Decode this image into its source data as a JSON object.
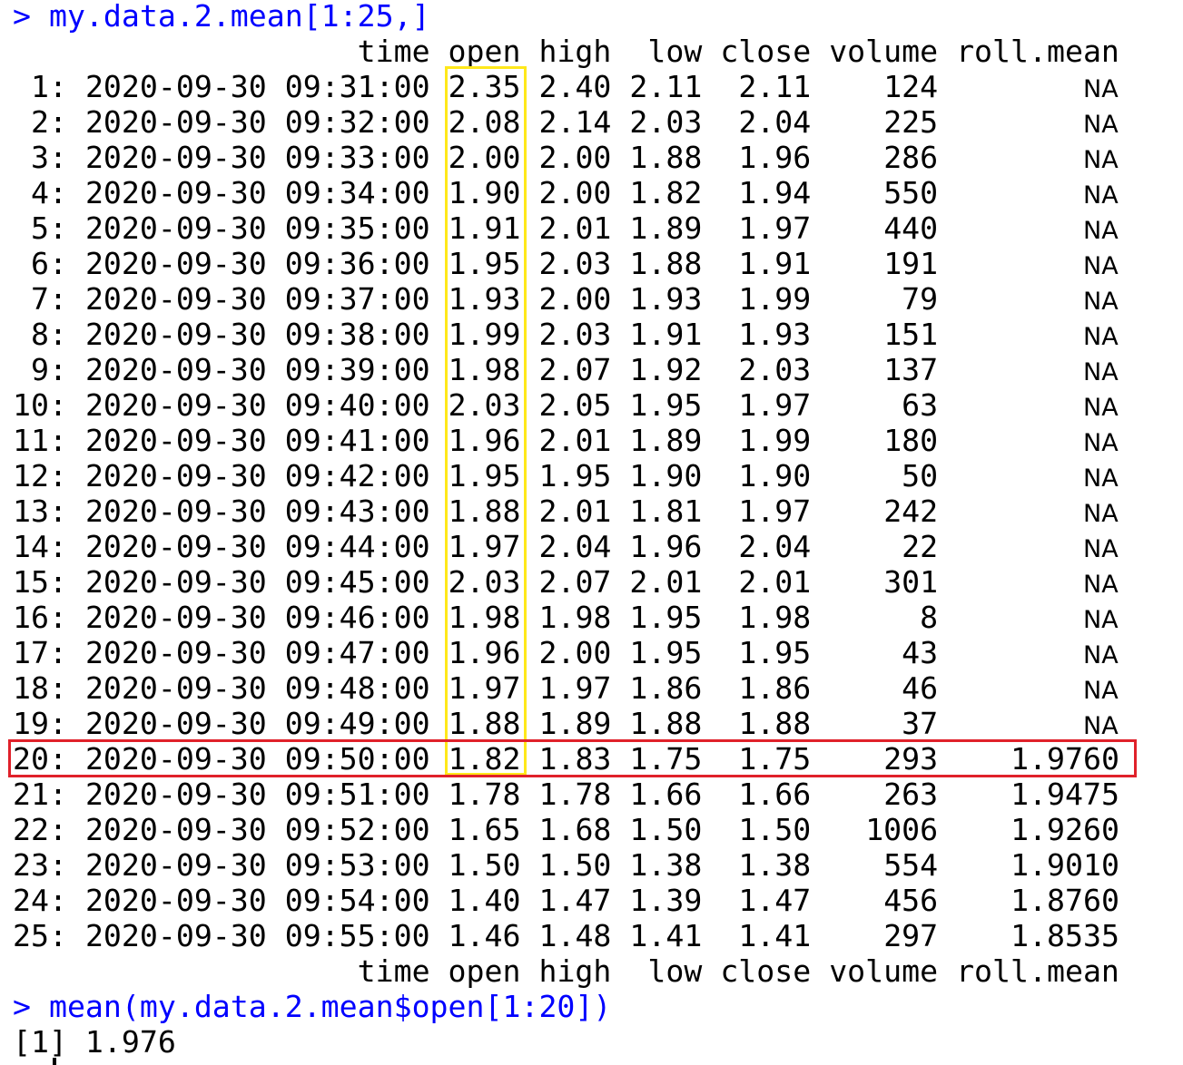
{
  "console": {
    "prompt": "> ",
    "command1": "my.data.2.mean[1:25,]",
    "header": {
      "time": "time",
      "open": "open",
      "high": "high",
      "low": "low",
      "close": "close",
      "volume": "volume",
      "roll_mean": "roll.mean"
    },
    "rows": [
      {
        "idx": "1:",
        "time": "2020-09-30 09:31:00",
        "open": "2.35",
        "high": "2.40",
        "low": "2.11",
        "close": "2.11",
        "volume": "124",
        "roll_mean": "NA"
      },
      {
        "idx": "2:",
        "time": "2020-09-30 09:32:00",
        "open": "2.08",
        "high": "2.14",
        "low": "2.03",
        "close": "2.04",
        "volume": "225",
        "roll_mean": "NA"
      },
      {
        "idx": "3:",
        "time": "2020-09-30 09:33:00",
        "open": "2.00",
        "high": "2.00",
        "low": "1.88",
        "close": "1.96",
        "volume": "286",
        "roll_mean": "NA"
      },
      {
        "idx": "4:",
        "time": "2020-09-30 09:34:00",
        "open": "1.90",
        "high": "2.00",
        "low": "1.82",
        "close": "1.94",
        "volume": "550",
        "roll_mean": "NA"
      },
      {
        "idx": "5:",
        "time": "2020-09-30 09:35:00",
        "open": "1.91",
        "high": "2.01",
        "low": "1.89",
        "close": "1.97",
        "volume": "440",
        "roll_mean": "NA"
      },
      {
        "idx": "6:",
        "time": "2020-09-30 09:36:00",
        "open": "1.95",
        "high": "2.03",
        "low": "1.88",
        "close": "1.91",
        "volume": "191",
        "roll_mean": "NA"
      },
      {
        "idx": "7:",
        "time": "2020-09-30 09:37:00",
        "open": "1.93",
        "high": "2.00",
        "low": "1.93",
        "close": "1.99",
        "volume": "79",
        "roll_mean": "NA"
      },
      {
        "idx": "8:",
        "time": "2020-09-30 09:38:00",
        "open": "1.99",
        "high": "2.03",
        "low": "1.91",
        "close": "1.93",
        "volume": "151",
        "roll_mean": "NA"
      },
      {
        "idx": "9:",
        "time": "2020-09-30 09:39:00",
        "open": "1.98",
        "high": "2.07",
        "low": "1.92",
        "close": "2.03",
        "volume": "137",
        "roll_mean": "NA"
      },
      {
        "idx": "10:",
        "time": "2020-09-30 09:40:00",
        "open": "2.03",
        "high": "2.05",
        "low": "1.95",
        "close": "1.97",
        "volume": "63",
        "roll_mean": "NA"
      },
      {
        "idx": "11:",
        "time": "2020-09-30 09:41:00",
        "open": "1.96",
        "high": "2.01",
        "low": "1.89",
        "close": "1.99",
        "volume": "180",
        "roll_mean": "NA"
      },
      {
        "idx": "12:",
        "time": "2020-09-30 09:42:00",
        "open": "1.95",
        "high": "1.95",
        "low": "1.90",
        "close": "1.90",
        "volume": "50",
        "roll_mean": "NA"
      },
      {
        "idx": "13:",
        "time": "2020-09-30 09:43:00",
        "open": "1.88",
        "high": "2.01",
        "low": "1.81",
        "close": "1.97",
        "volume": "242",
        "roll_mean": "NA"
      },
      {
        "idx": "14:",
        "time": "2020-09-30 09:44:00",
        "open": "1.97",
        "high": "2.04",
        "low": "1.96",
        "close": "2.04",
        "volume": "22",
        "roll_mean": "NA"
      },
      {
        "idx": "15:",
        "time": "2020-09-30 09:45:00",
        "open": "2.03",
        "high": "2.07",
        "low": "2.01",
        "close": "2.01",
        "volume": "301",
        "roll_mean": "NA"
      },
      {
        "idx": "16:",
        "time": "2020-09-30 09:46:00",
        "open": "1.98",
        "high": "1.98",
        "low": "1.95",
        "close": "1.98",
        "volume": "8",
        "roll_mean": "NA"
      },
      {
        "idx": "17:",
        "time": "2020-09-30 09:47:00",
        "open": "1.96",
        "high": "2.00",
        "low": "1.95",
        "close": "1.95",
        "volume": "43",
        "roll_mean": "NA"
      },
      {
        "idx": "18:",
        "time": "2020-09-30 09:48:00",
        "open": "1.97",
        "high": "1.97",
        "low": "1.86",
        "close": "1.86",
        "volume": "46",
        "roll_mean": "NA"
      },
      {
        "idx": "19:",
        "time": "2020-09-30 09:49:00",
        "open": "1.88",
        "high": "1.89",
        "low": "1.88",
        "close": "1.88",
        "volume": "37",
        "roll_mean": "NA"
      },
      {
        "idx": "20:",
        "time": "2020-09-30 09:50:00",
        "open": "1.82",
        "high": "1.83",
        "low": "1.75",
        "close": "1.75",
        "volume": "293",
        "roll_mean": "1.9760"
      },
      {
        "idx": "21:",
        "time": "2020-09-30 09:51:00",
        "open": "1.78",
        "high": "1.78",
        "low": "1.66",
        "close": "1.66",
        "volume": "263",
        "roll_mean": "1.9475"
      },
      {
        "idx": "22:",
        "time": "2020-09-30 09:52:00",
        "open": "1.65",
        "high": "1.68",
        "low": "1.50",
        "close": "1.50",
        "volume": "1006",
        "roll_mean": "1.9260"
      },
      {
        "idx": "23:",
        "time": "2020-09-30 09:53:00",
        "open": "1.50",
        "high": "1.50",
        "low": "1.38",
        "close": "1.38",
        "volume": "554",
        "roll_mean": "1.9010"
      },
      {
        "idx": "24:",
        "time": "2020-09-30 09:54:00",
        "open": "1.40",
        "high": "1.47",
        "low": "1.39",
        "close": "1.47",
        "volume": "456",
        "roll_mean": "1.8760"
      },
      {
        "idx": "25:",
        "time": "2020-09-30 09:55:00",
        "open": "1.46",
        "high": "1.48",
        "low": "1.41",
        "close": "1.41",
        "volume": "297",
        "roll_mean": "1.8535"
      }
    ],
    "command2": "mean(my.data.2.mean$open[1:20])",
    "result": "[1] 1.976"
  },
  "colors": {
    "command": "#0000ff",
    "text": "#000000",
    "highlight_yellow": "#ffe81a",
    "highlight_red": "#e0212a"
  }
}
